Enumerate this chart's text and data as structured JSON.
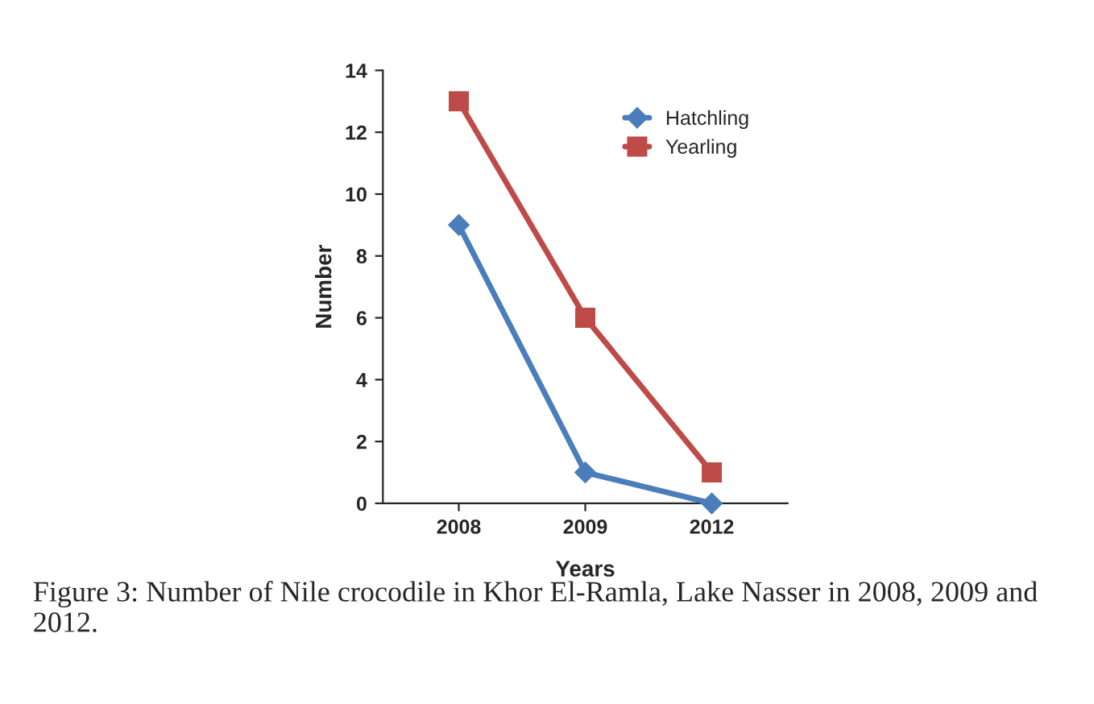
{
  "chart_data": {
    "type": "line",
    "xlabel": "Years",
    "ylabel": "Number",
    "categories": [
      "2008",
      "2009",
      "2012"
    ],
    "series": [
      {
        "name": "Hatchling",
        "color": "#4a7ebb",
        "values": [
          9,
          1,
          0
        ],
        "marker": "diamond"
      },
      {
        "name": "Yearling",
        "color": "#be4b48",
        "values": [
          13,
          6,
          1
        ],
        "marker": "square"
      }
    ],
    "ylim": [
      0,
      14
    ],
    "yticks": [
      0,
      2,
      4,
      6,
      8,
      10,
      12,
      14
    ],
    "grid": false,
    "legend": "top right",
    "line_style": "solid",
    "annotations": [
      "Figure 3: Number of Nile crocodile in Khor El-Ramla, Lake Nasser in 2008, 2009 and 2012."
    ]
  }
}
